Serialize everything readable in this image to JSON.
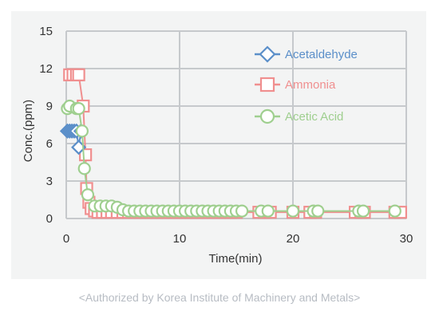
{
  "caption": "<Authorized by Korea Institute of Machinery and Metals>",
  "chart_data": {
    "type": "scatter",
    "title": "",
    "xlabel": "Time(min)",
    "ylabel": "Conc.(ppm)",
    "xlim": [
      0,
      30
    ],
    "ylim": [
      0,
      15
    ],
    "xticks": [
      0,
      10,
      20,
      30
    ],
    "yticks": [
      0,
      3,
      6,
      9,
      12,
      15
    ],
    "grid": true,
    "legend_position": "top-right",
    "series": [
      {
        "name": "Acetaldehyde",
        "marker": "diamond",
        "color": "#5b8fc9",
        "points": [
          [
            0.1,
            7.0
          ],
          [
            0.3,
            7.0
          ],
          [
            0.5,
            7.0
          ],
          [
            0.7,
            7.0
          ],
          [
            0.9,
            7.0
          ],
          [
            1.1,
            5.7
          ],
          [
            1.3,
            7.0
          ]
        ]
      },
      {
        "name": "Ammonia",
        "marker": "square",
        "color": "#f08f8f",
        "points": [
          [
            0.3,
            11.5
          ],
          [
            0.6,
            11.5
          ],
          [
            0.9,
            11.5
          ],
          [
            1.1,
            11.5
          ],
          [
            1.5,
            9.0
          ],
          [
            1.7,
            5.1
          ],
          [
            1.8,
            2.4
          ],
          [
            2.0,
            1.3
          ],
          [
            2.2,
            0.8
          ],
          [
            2.5,
            0.6
          ],
          [
            2.8,
            0.5
          ],
          [
            3.2,
            0.5
          ],
          [
            3.6,
            0.5
          ],
          [
            4.0,
            0.5
          ],
          [
            4.5,
            0.5
          ],
          [
            5.0,
            0.5
          ],
          [
            5.5,
            0.5
          ],
          [
            6.0,
            0.5
          ],
          [
            6.5,
            0.5
          ],
          [
            7.0,
            0.5
          ],
          [
            7.5,
            0.5
          ],
          [
            8.0,
            0.5
          ],
          [
            8.5,
            0.5
          ],
          [
            9.0,
            0.5
          ],
          [
            9.5,
            0.5
          ],
          [
            10.0,
            0.5
          ],
          [
            10.5,
            0.5
          ],
          [
            11.0,
            0.5
          ],
          [
            11.5,
            0.5
          ],
          [
            12.0,
            0.5
          ],
          [
            12.5,
            0.5
          ],
          [
            13.0,
            0.5
          ],
          [
            13.5,
            0.5
          ],
          [
            14.0,
            0.5
          ],
          [
            14.5,
            0.5
          ],
          [
            15.0,
            0.5
          ],
          [
            17.0,
            0.5
          ],
          [
            17.5,
            0.5
          ],
          [
            18.0,
            0.5
          ],
          [
            20.0,
            0.5
          ],
          [
            21.5,
            0.5
          ],
          [
            22.0,
            0.5
          ],
          [
            25.5,
            0.5
          ],
          [
            26.0,
            0.5
          ],
          [
            26.3,
            0.5
          ],
          [
            29.0,
            0.5
          ],
          [
            29.5,
            0.5
          ]
        ]
      },
      {
        "name": "Acetic Acid",
        "marker": "circle",
        "color": "#9fcf8f",
        "points": [
          [
            0.1,
            8.8
          ],
          [
            0.3,
            9.0
          ],
          [
            0.9,
            8.8
          ],
          [
            1.1,
            8.8
          ],
          [
            1.4,
            7.0
          ],
          [
            1.6,
            4.0
          ],
          [
            1.9,
            1.9
          ],
          [
            2.5,
            1.0
          ],
          [
            3.0,
            1.0
          ],
          [
            3.5,
            1.0
          ],
          [
            4.0,
            1.0
          ],
          [
            4.5,
            0.9
          ],
          [
            5.0,
            0.7
          ],
          [
            5.5,
            0.6
          ],
          [
            6.0,
            0.6
          ],
          [
            6.5,
            0.6
          ],
          [
            7.0,
            0.6
          ],
          [
            7.5,
            0.6
          ],
          [
            8.0,
            0.6
          ],
          [
            8.5,
            0.6
          ],
          [
            9.0,
            0.6
          ],
          [
            9.5,
            0.6
          ],
          [
            10.0,
            0.6
          ],
          [
            10.5,
            0.6
          ],
          [
            11.0,
            0.6
          ],
          [
            11.5,
            0.6
          ],
          [
            12.0,
            0.6
          ],
          [
            12.5,
            0.6
          ],
          [
            13.0,
            0.6
          ],
          [
            13.5,
            0.6
          ],
          [
            14.0,
            0.6
          ],
          [
            14.5,
            0.6
          ],
          [
            15.0,
            0.6
          ],
          [
            15.5,
            0.6
          ],
          [
            17.2,
            0.6
          ],
          [
            17.8,
            0.6
          ],
          [
            20.0,
            0.6
          ],
          [
            21.8,
            0.6
          ],
          [
            22.2,
            0.6
          ],
          [
            25.8,
            0.6
          ],
          [
            26.2,
            0.6
          ],
          [
            29.0,
            0.6
          ]
        ]
      }
    ]
  }
}
